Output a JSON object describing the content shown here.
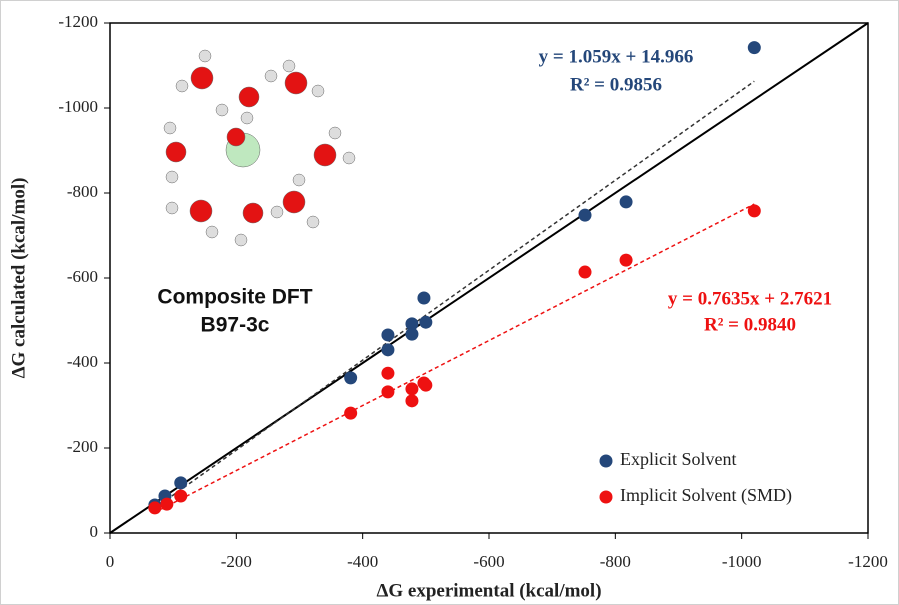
{
  "chart_data": {
    "type": "scatter",
    "x_label": "ΔG experimental (kcal/mol)",
    "y_label": "ΔG calculated (kcal/mol)",
    "xlim": [
      0,
      -1200
    ],
    "ylim": [
      0,
      -1200
    ],
    "xticks": [
      0,
      -200,
      -400,
      -600,
      -800,
      -1000,
      -1200
    ],
    "yticks": [
      0,
      -200,
      -400,
      -600,
      -800,
      -1000,
      -1200
    ],
    "grid": false,
    "legend": "lower right",
    "annotations": [
      "Composite DFT",
      "B97-3c"
    ],
    "series": [
      {
        "name": "Explicit Solvent",
        "color": "#24477a",
        "fit_equation": "y = 1.059x + 14.966",
        "fit_r2": "R² = 0.9856",
        "x": [
          -1020,
          -752,
          -817,
          -497,
          -500,
          -478,
          -478,
          -440,
          -440,
          -381,
          -112,
          -87,
          -71
        ],
        "values": [
          -1142,
          -748,
          -779,
          -553,
          -496,
          -492,
          -468,
          -466,
          -431,
          -365,
          -118,
          -87,
          -66
        ]
      },
      {
        "name": "Implicit Solvent (SMD)",
        "color": "#ee1111",
        "fit_equation": "y = 0.7635x + 2.7621",
        "fit_r2": "R² = 0.9840",
        "x": [
          -1020,
          -752,
          -817,
          -497,
          -500,
          -478,
          -478,
          -440,
          -440,
          -381,
          -112,
          -90,
          -71
        ],
        "values": [
          -758,
          -614,
          -642,
          -353,
          -348,
          -339,
          -311,
          -376,
          -332,
          -282,
          -87,
          -68,
          -59
        ]
      }
    ]
  }
}
